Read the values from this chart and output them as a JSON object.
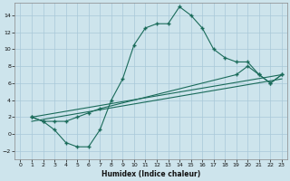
{
  "xlabel": "Humidex (Indice chaleur)",
  "bg_color": "#cde4ec",
  "line_color": "#1a6b5a",
  "grid_color": "#a8c8d8",
  "xlim": [
    -0.5,
    23.5
  ],
  "ylim": [
    -3,
    15.5
  ],
  "xticks": [
    0,
    1,
    2,
    3,
    4,
    5,
    6,
    7,
    8,
    9,
    10,
    11,
    12,
    13,
    14,
    15,
    16,
    17,
    18,
    19,
    20,
    21,
    22,
    23
  ],
  "yticks": [
    -2,
    0,
    2,
    4,
    6,
    8,
    10,
    12,
    14
  ],
  "curve1_x": [
    1,
    2,
    3,
    4,
    5,
    6,
    7,
    8,
    9,
    10,
    11,
    12,
    13,
    14,
    15,
    16,
    17,
    18,
    19,
    20,
    21,
    22,
    23
  ],
  "curve1_y": [
    2,
    1.5,
    0.5,
    -1,
    -1.5,
    -1.5,
    0.5,
    4,
    6.5,
    10.5,
    12.5,
    13,
    13,
    15,
    14,
    12.5,
    10,
    9,
    8.5,
    8.5,
    7,
    6,
    7
  ],
  "curve2_x": [
    1,
    2,
    3,
    4,
    5,
    6,
    7,
    19,
    20,
    21,
    22,
    23
  ],
  "curve2_y": [
    2,
    1.5,
    1.5,
    1.5,
    2,
    2.5,
    3,
    7,
    8,
    7,
    6,
    7
  ],
  "curve3_x": [
    1,
    23
  ],
  "curve3_y": [
    2,
    7
  ],
  "curve4_x": [
    1,
    23
  ],
  "curve4_y": [
    1.5,
    6.5
  ]
}
